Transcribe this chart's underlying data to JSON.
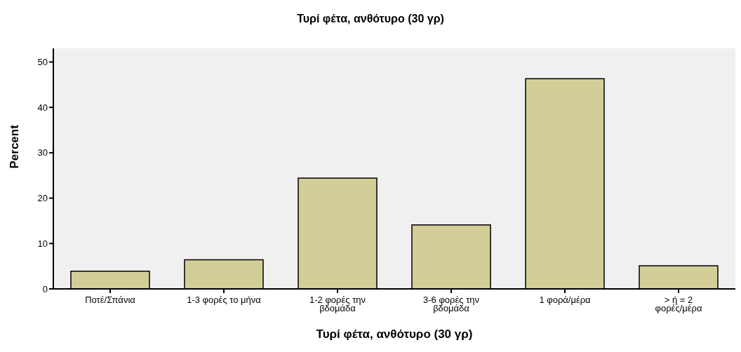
{
  "chart_data": {
    "type": "bar",
    "title": "Τυρί φέτα, ανθότυρο (30 γρ)",
    "xlabel": "Τυρί φέτα, ανθότυρο (30 γρ)",
    "ylabel": "Percent",
    "categories": [
      "Ποτέ/Σπάνια",
      "1-3 φορές το μήνα",
      "1-2 φορές την βδομάδα",
      "3-6 φορές την βδομάδα",
      "1 φορά/μέρα",
      "> ή = 2 φορές/μέρα"
    ],
    "values": [
      3.9,
      6.4,
      24.4,
      14.1,
      46.3,
      5.1
    ],
    "color": "#d3ce97",
    "ylim": [
      0,
      53
    ],
    "yticks": [
      0,
      10,
      20,
      30,
      40,
      50
    ],
    "grid": false
  }
}
